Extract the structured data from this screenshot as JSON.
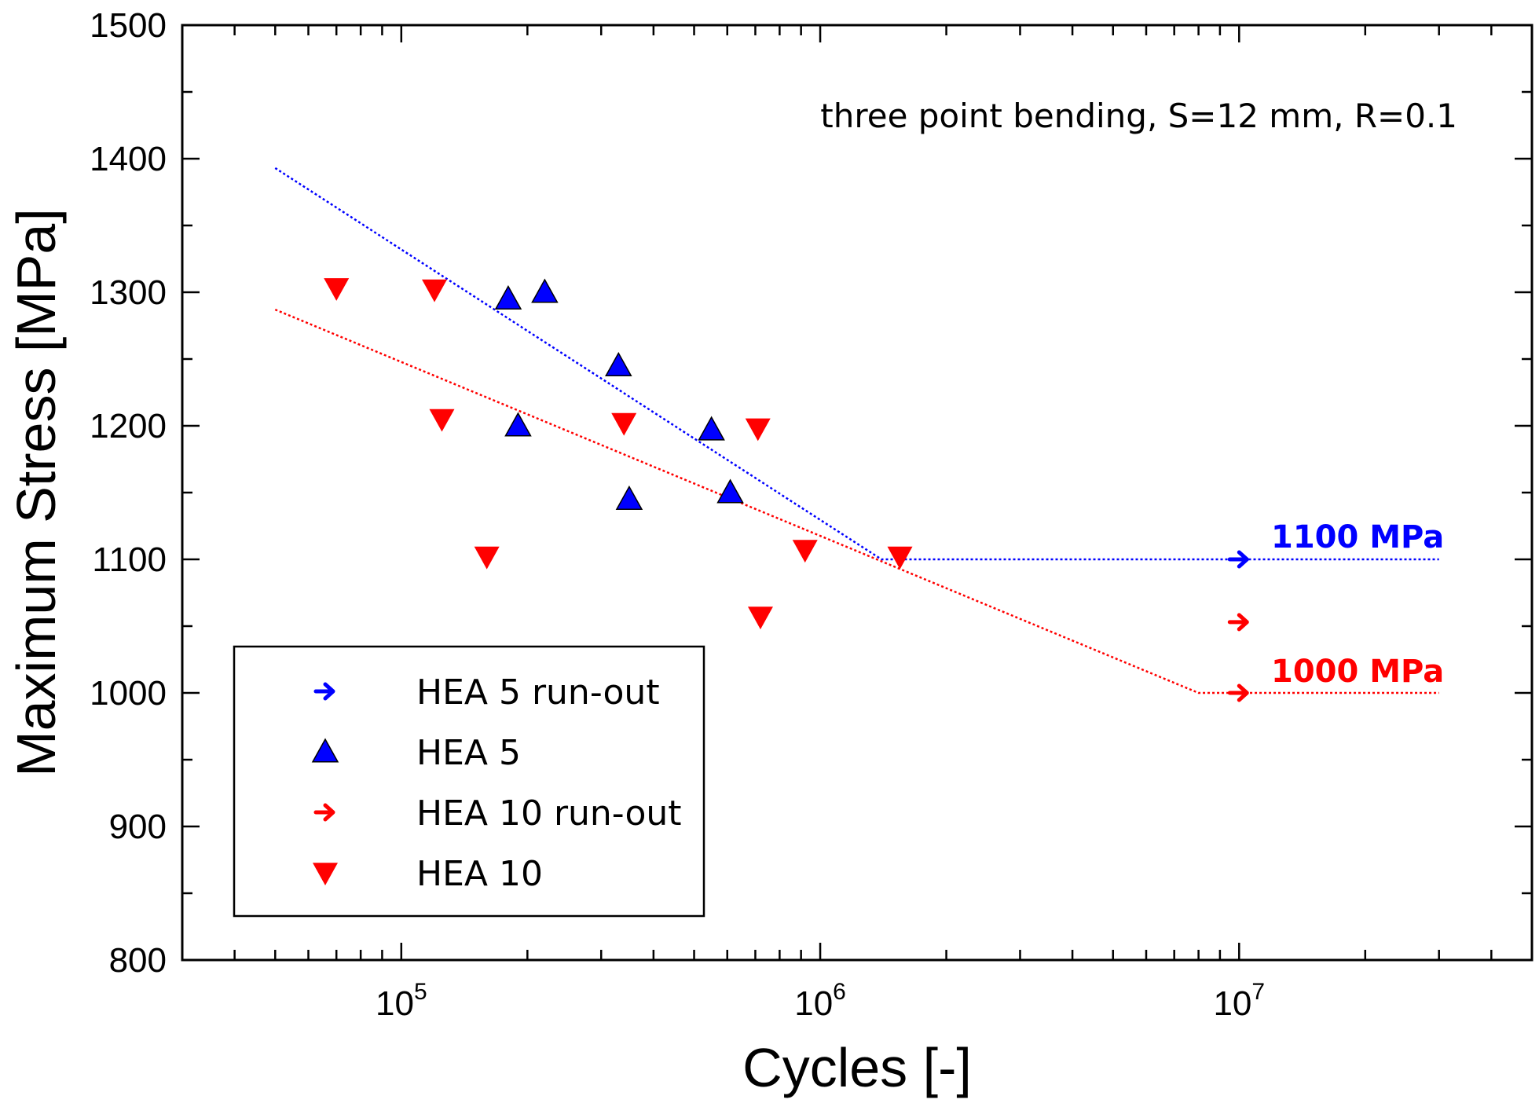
{
  "chart_data": {
    "type": "scatter",
    "title": "",
    "xlabel": "Cycles [-]",
    "ylabel": "Maximum Stress [MPa]",
    "xscale": "log",
    "xlim": [
      30000,
      50000000
    ],
    "ylim": [
      800,
      1500
    ],
    "yticks": [
      "800",
      "900",
      "1000",
      "1100",
      "1200",
      "1300",
      "1400",
      "1500"
    ],
    "xticks": [
      {
        "base": "10",
        "exp": "5",
        "value": 100000
      },
      {
        "base": "10",
        "exp": "6",
        "value": 1000000
      },
      {
        "base": "10",
        "exp": "7",
        "value": 10000000
      }
    ],
    "annotation": "three point bending, S=12 mm, R=0.1",
    "legend": {
      "position": "bottom-left",
      "entries": [
        "HEA 5 run-out",
        "HEA 5",
        "HEA 10 run-out",
        "HEA 10"
      ]
    },
    "series": [
      {
        "name": "HEA 5 run-out",
        "marker": "arrow-right",
        "color": "#0000ff",
        "points": [
          [
            10000000,
            1100
          ]
        ]
      },
      {
        "name": "HEA 5",
        "marker": "triangle-up",
        "color": "#0000ff",
        "points": [
          [
            180000,
            1295
          ],
          [
            220000,
            1300
          ],
          [
            330000,
            1245
          ],
          [
            190000,
            1200
          ],
          [
            550000,
            1197
          ],
          [
            350000,
            1145
          ],
          [
            610000,
            1150
          ]
        ]
      },
      {
        "name": "HEA 10 run-out",
        "marker": "arrow-right",
        "color": "#ff0000",
        "points": [
          [
            10000000,
            1053
          ],
          [
            10000000,
            1000
          ]
        ]
      },
      {
        "name": "HEA 10",
        "marker": "triangle-down",
        "color": "#ff0000",
        "points": [
          [
            70000,
            1303
          ],
          [
            120000,
            1302
          ],
          [
            125000,
            1205
          ],
          [
            340000,
            1202
          ],
          [
            710000,
            1198
          ],
          [
            160000,
            1102
          ],
          [
            920000,
            1107
          ],
          [
            1550000,
            1102
          ],
          [
            720000,
            1057
          ]
        ]
      }
    ],
    "fit_lines": [
      {
        "name": "HEA 5 fit",
        "color": "#0000ff",
        "points": [
          [
            50000,
            1393
          ],
          [
            1400000,
            1100
          ],
          [
            30000000,
            1100
          ]
        ]
      },
      {
        "name": "HEA 10 fit",
        "color": "#ff0000",
        "points": [
          [
            50000,
            1287
          ],
          [
            8000000,
            1000
          ],
          [
            30000000,
            1000
          ]
        ]
      }
    ],
    "limit_labels": [
      {
        "text": "1100 MPa",
        "color": "#0000ff"
      },
      {
        "text": "1000 MPa",
        "color": "#ff0000"
      }
    ]
  }
}
